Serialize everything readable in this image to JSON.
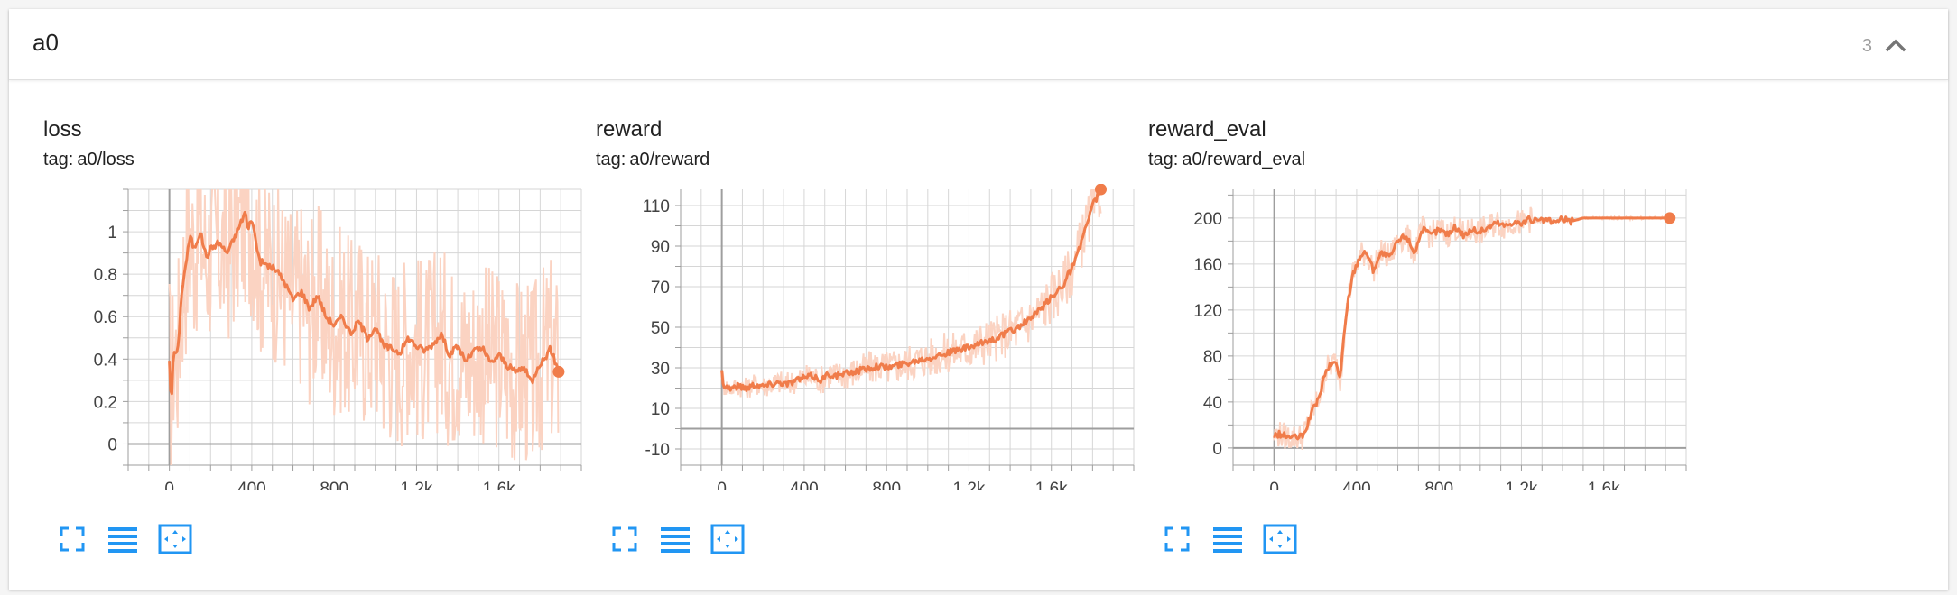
{
  "header": {
    "title": "a0",
    "count": "3",
    "collapse_icon": "chevron-up-icon"
  },
  "colors": {
    "series": "#f07c4a",
    "series_light": "#fbd3c2",
    "grid": "#d6d6d6",
    "axis": "#9e9e9e",
    "icon": "#2196f3"
  },
  "toolbar_icons": [
    "fullscreen-icon",
    "data-list-icon",
    "fit-domain-icon"
  ],
  "panels": [
    {
      "title": "loss",
      "tag_label": "tag:",
      "tag_value": "a0/loss"
    },
    {
      "title": "reward",
      "tag_label": "tag:",
      "tag_value": "a0/reward"
    },
    {
      "title": "reward_eval",
      "tag_label": "tag:",
      "tag_value": "a0/reward_eval"
    }
  ],
  "chart_data": [
    {
      "type": "line",
      "title": "loss",
      "xlim": [
        -200,
        2000
      ],
      "ylim": [
        -0.1,
        1.2
      ],
      "xticks": [
        0,
        400,
        800,
        1200,
        1600
      ],
      "xtick_labels": [
        "0",
        "400",
        "800",
        "1.2k",
        "1.6k"
      ],
      "yticks": [
        0,
        0.2,
        0.4,
        0.6,
        0.8,
        1
      ],
      "ytick_labels": [
        "0",
        "0.2",
        "0.4",
        "0.6",
        "0.8",
        "1"
      ],
      "grid": true,
      "x": [
        0,
        10,
        20,
        40,
        60,
        80,
        100,
        120,
        150,
        180,
        200,
        240,
        280,
        320,
        350,
        370,
        380,
        400,
        420,
        440,
        480,
        520,
        560,
        600,
        640,
        680,
        720,
        760,
        800,
        840,
        880,
        920,
        960,
        1000,
        1040,
        1080,
        1120,
        1160,
        1200,
        1240,
        1280,
        1320,
        1360,
        1400,
        1440,
        1480,
        1520,
        1560,
        1600,
        1640,
        1680,
        1720,
        1760,
        1790,
        1820,
        1850,
        1890
      ],
      "y": [
        0.4,
        0.17,
        0.44,
        0.42,
        0.72,
        0.85,
        0.98,
        0.92,
        1.0,
        0.88,
        0.92,
        0.95,
        0.9,
        0.98,
        1.05,
        1.1,
        1.0,
        1.07,
        0.95,
        0.86,
        0.84,
        0.82,
        0.76,
        0.68,
        0.72,
        0.64,
        0.7,
        0.6,
        0.56,
        0.6,
        0.52,
        0.58,
        0.5,
        0.55,
        0.46,
        0.45,
        0.43,
        0.5,
        0.46,
        0.44,
        0.47,
        0.52,
        0.42,
        0.46,
        0.39,
        0.44,
        0.45,
        0.38,
        0.42,
        0.37,
        0.34,
        0.36,
        0.29,
        0.37,
        0.4,
        0.45,
        0.34
      ]
    },
    {
      "type": "line",
      "title": "reward",
      "xlim": [
        -200,
        2000
      ],
      "ylim": [
        -18,
        118
      ],
      "xticks": [
        0,
        400,
        800,
        1200,
        1600
      ],
      "xtick_labels": [
        "0",
        "400",
        "800",
        "1.2k",
        "1.6k"
      ],
      "yticks": [
        -10,
        10,
        30,
        50,
        70,
        90,
        110
      ],
      "ytick_labels": [
        "-10",
        "10",
        "30",
        "50",
        "70",
        "90",
        "110"
      ],
      "grid": true,
      "x": [
        0,
        10,
        40,
        80,
        120,
        160,
        200,
        240,
        280,
        320,
        360,
        400,
        440,
        480,
        520,
        560,
        600,
        640,
        680,
        720,
        760,
        800,
        840,
        880,
        920,
        960,
        1000,
        1040,
        1080,
        1120,
        1160,
        1200,
        1240,
        1280,
        1320,
        1360,
        1400,
        1440,
        1480,
        1520,
        1560,
        1600,
        1620,
        1640,
        1660,
        1680,
        1700,
        1720,
        1740,
        1760,
        1780,
        1800,
        1820,
        1840
      ],
      "y": [
        28,
        21,
        20,
        21,
        20,
        22,
        21,
        22,
        23,
        22,
        24,
        25,
        26,
        24,
        27,
        26,
        27,
        28,
        29,
        30,
        31,
        30,
        31,
        32,
        33,
        34,
        35,
        36,
        37,
        38,
        39,
        40,
        41,
        43,
        44,
        46,
        48,
        50,
        53,
        56,
        60,
        65,
        66,
        70,
        71,
        76,
        79,
        84,
        90,
        98,
        102,
        110,
        114,
        118
      ]
    },
    {
      "type": "line",
      "title": "reward_eval",
      "xlim": [
        -200,
        2000
      ],
      "ylim": [
        -15,
        225
      ],
      "xticks": [
        0,
        400,
        800,
        1200,
        1600
      ],
      "xtick_labels": [
        "0",
        "400",
        "800",
        "1.2k",
        "1.6k"
      ],
      "yticks": [
        0,
        40,
        80,
        120,
        160,
        200
      ],
      "ytick_labels": [
        "0",
        "40",
        "80",
        "120",
        "160",
        "200"
      ],
      "grid": true,
      "x": [
        0,
        20,
        60,
        100,
        140,
        180,
        220,
        240,
        260,
        300,
        320,
        340,
        360,
        380,
        400,
        420,
        450,
        480,
        520,
        560,
        600,
        640,
        680,
        720,
        760,
        800,
        840,
        880,
        920,
        960,
        1000,
        1040,
        1080,
        1120,
        1160,
        1200,
        1240,
        1280,
        1320,
        1360,
        1400,
        1440,
        1500,
        1600,
        1700,
        1800,
        1920
      ],
      "y": [
        10,
        12,
        10,
        9,
        10,
        30,
        45,
        60,
        70,
        75,
        60,
        100,
        130,
        150,
        160,
        168,
        170,
        155,
        170,
        165,
        180,
        185,
        170,
        190,
        185,
        190,
        186,
        192,
        185,
        190,
        188,
        192,
        196,
        193,
        197,
        195,
        199,
        197,
        198,
        196,
        199,
        197,
        200,
        200,
        200,
        200,
        200
      ]
    }
  ]
}
